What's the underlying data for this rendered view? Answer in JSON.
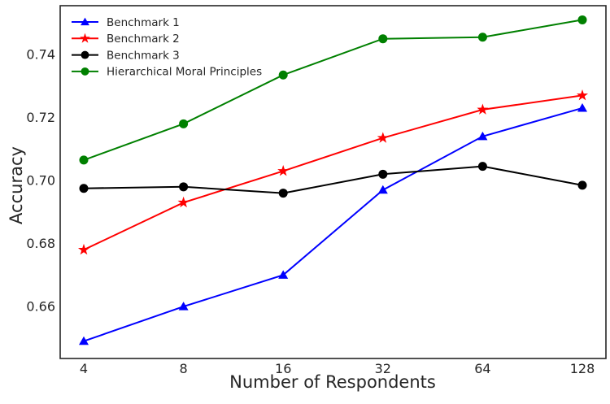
{
  "chart_data": {
    "type": "line",
    "title": "",
    "xlabel": "Number of Respondents",
    "ylabel": "Accuracy",
    "x": [
      4,
      8,
      16,
      32,
      64,
      128
    ],
    "x_scale": "log2-equal-spacing",
    "yticks": [
      0.66,
      0.68,
      0.7,
      0.72,
      0.74
    ],
    "ylim": [
      0.6435,
      0.7555
    ],
    "grid": false,
    "legend_position": "upper-left-no-frame",
    "series": [
      {
        "name": "Benchmark 1",
        "color": "#0000ff",
        "marker": "triangle",
        "values": [
          0.649,
          0.66,
          0.67,
          0.697,
          0.714,
          0.723
        ]
      },
      {
        "name": "Benchmark 2",
        "color": "#ff0000",
        "marker": "star",
        "values": [
          0.678,
          0.693,
          0.703,
          0.7135,
          0.7225,
          0.727
        ]
      },
      {
        "name": "Benchmark 3",
        "color": "#000000",
        "marker": "circle",
        "values": [
          0.6975,
          0.698,
          0.696,
          0.702,
          0.7045,
          0.6985
        ]
      },
      {
        "name": "Hierarchical Moral Principles",
        "color": "#008000",
        "marker": "circle",
        "values": [
          0.7065,
          0.718,
          0.7335,
          0.745,
          0.7455,
          0.751
        ]
      }
    ],
    "text_color": "#262626",
    "spine_color": "#262626"
  }
}
